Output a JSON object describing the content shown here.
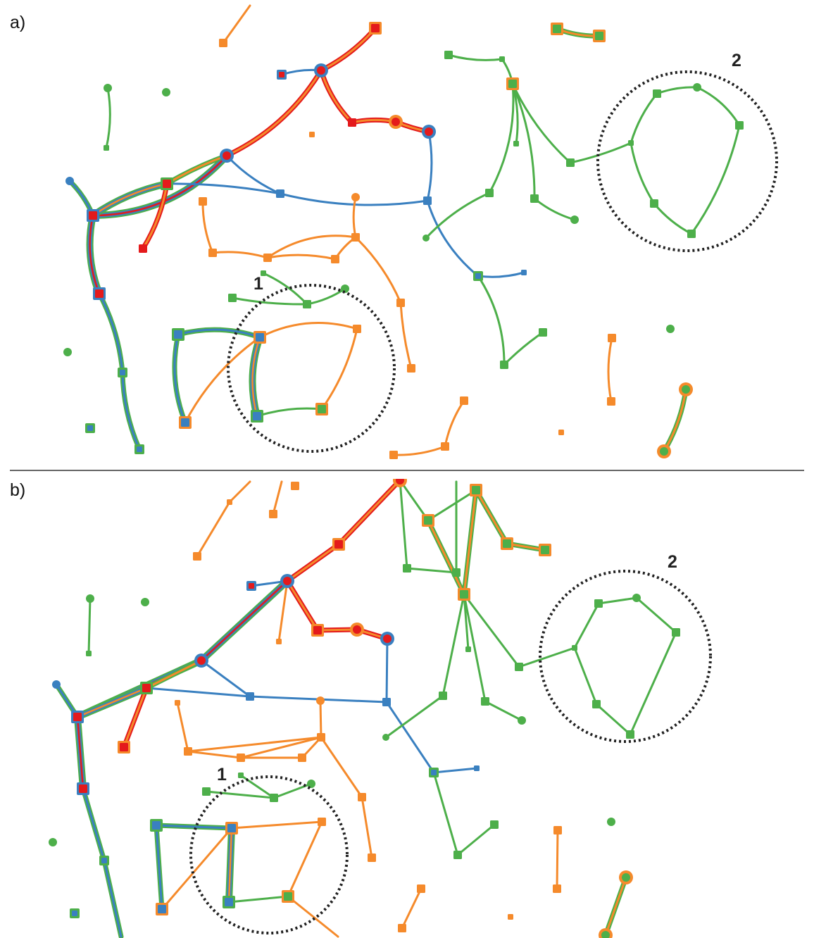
{
  "panels": [
    {
      "id": "a",
      "label": "a)",
      "edge_style": "curved"
    },
    {
      "id": "b",
      "label": "b)",
      "edge_style": "straight"
    }
  ],
  "highlight_labels": [
    "1",
    "2"
  ],
  "colors": {
    "green": "#4daf4a",
    "orange": "#f58a2b",
    "red": "#e41a1c",
    "blue": "#3a80c0",
    "highlight_circle": "#222222",
    "divider": "#333333"
  },
  "legend_note": ""
}
